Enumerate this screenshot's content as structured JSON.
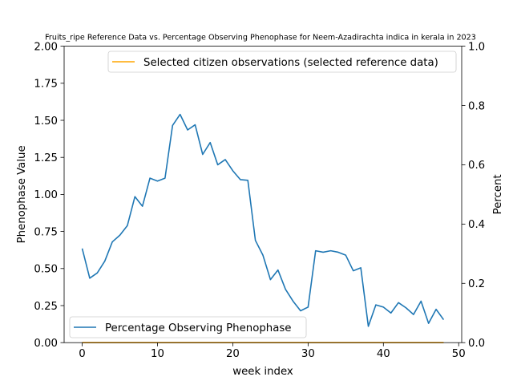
{
  "chart_data": {
    "type": "line",
    "title": "Fruits_ripe Reference Data vs. Percentage Observing Phenophase for Neem-Azadirachta indica in kerala in 2023",
    "xlabel": "week index",
    "ylabel_left": "Phenophase Value",
    "ylabel_right": "Percent",
    "xlim": [
      -2.4,
      50.4
    ],
    "ylim_left": [
      0,
      2.0
    ],
    "ylim_right": [
      0,
      1.0
    ],
    "x_ticks": [
      0,
      10,
      20,
      30,
      40,
      50
    ],
    "y_left_ticks": [
      "0.00",
      "0.25",
      "0.50",
      "0.75",
      "1.00",
      "1.25",
      "1.50",
      "1.75",
      "2.00"
    ],
    "y_right_ticks": [
      "0.0",
      "0.2",
      "0.4",
      "0.6",
      "0.8",
      "1.0"
    ],
    "grid": false,
    "series": [
      {
        "name": "Percentage Observing Phenophase",
        "axis": "left",
        "color": "#1f77b4",
        "legend_position": "lower-left",
        "x": [
          0,
          1,
          2,
          3,
          4,
          5,
          6,
          7,
          8,
          9,
          10,
          11,
          12,
          13,
          14,
          15,
          16,
          17,
          18,
          19,
          20,
          21,
          22,
          23,
          24,
          25,
          26,
          27,
          28,
          29,
          30,
          31,
          32,
          33,
          34,
          35,
          36,
          37,
          38,
          39,
          40,
          41,
          42,
          43,
          44,
          45,
          46,
          47,
          48
        ],
        "values": [
          0.635,
          0.435,
          0.47,
          0.55,
          0.68,
          0.725,
          0.79,
          0.985,
          0.92,
          1.11,
          1.09,
          1.11,
          1.465,
          1.54,
          1.435,
          1.47,
          1.27,
          1.35,
          1.2,
          1.235,
          1.16,
          1.1,
          1.095,
          0.69,
          0.59,
          0.425,
          0.49,
          0.36,
          0.28,
          0.215,
          0.24,
          0.62,
          0.61,
          0.62,
          0.61,
          0.59,
          0.485,
          0.505,
          0.11,
          0.255,
          0.24,
          0.2,
          0.27,
          0.235,
          0.19,
          0.28,
          0.13,
          0.225,
          0.155
        ]
      },
      {
        "name": "Selected citizen observations (selected reference data)",
        "axis": "right",
        "color": "#ffa500",
        "legend_position": "top-right",
        "x": [
          0,
          48
        ],
        "values": [
          0,
          0
        ]
      }
    ]
  }
}
